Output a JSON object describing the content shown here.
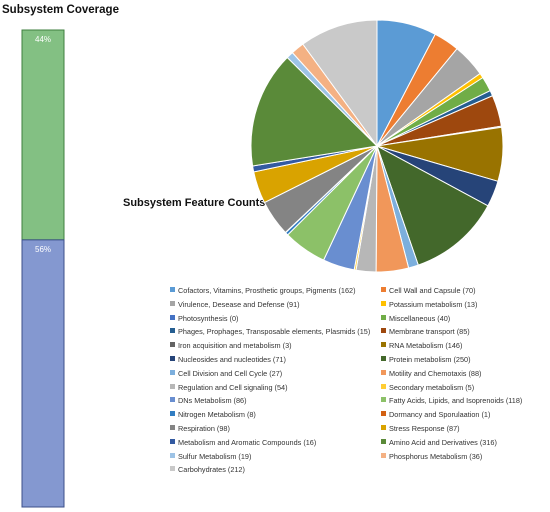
{
  "coverage": {
    "title": "Subsystem Coverage",
    "segments": [
      {
        "label": "44%",
        "value": 44,
        "color": "#83c083",
        "border": "#3f7f3f"
      },
      {
        "label": "56%",
        "value": 56,
        "color": "#8498d0",
        "border": "#3c4f8a"
      }
    ]
  },
  "chart_data": {
    "type": "pie",
    "title": "Subsystem Feature Counts",
    "legend_position": "bottom",
    "series": [
      {
        "name": "Cofactors, Vitamins, Prosthetic groups, Pigments (162)",
        "value": 162,
        "color": "#5b9bd5"
      },
      {
        "name": "Cell Wall and Capsule (70)",
        "value": 70,
        "color": "#ed7d31"
      },
      {
        "name": "Virulence, Desease and Defense (91)",
        "value": 91,
        "color": "#a5a5a5"
      },
      {
        "name": "Potassium metabolism (13)",
        "value": 13,
        "color": "#ffc000"
      },
      {
        "name": "Photosynthesis (0)",
        "value": 0,
        "color": "#4472c4"
      },
      {
        "name": "Miscellaneous (40)",
        "value": 40,
        "color": "#70ad47"
      },
      {
        "name": "Phages, Prophages, Transposable elements, Plasmids (15)",
        "value": 15,
        "color": "#255e91"
      },
      {
        "name": "Membrane transport (85)",
        "value": 85,
        "color": "#9e480e"
      },
      {
        "name": "Iron acquisition and metabolism (3)",
        "value": 3,
        "color": "#636363"
      },
      {
        "name": "RNA Metabolism (146)",
        "value": 146,
        "color": "#997300"
      },
      {
        "name": "Nucleosides and nucleotides (71)",
        "value": 71,
        "color": "#264478"
      },
      {
        "name": "Protein metabolism (250)",
        "value": 250,
        "color": "#43682b"
      },
      {
        "name": "Cell Division and Cell Cycle (27)",
        "value": 27,
        "color": "#7cafdd"
      },
      {
        "name": "Motility and Chemotaxis (88)",
        "value": 88,
        "color": "#f1975a"
      },
      {
        "name": "Regulation and Cell signaling (54)",
        "value": 54,
        "color": "#b7b7b7"
      },
      {
        "name": "Secondary metabolism (5)",
        "value": 5,
        "color": "#ffcd33"
      },
      {
        "name": "DNs Metabolism (86)",
        "value": 86,
        "color": "#698ed0"
      },
      {
        "name": "Fatty Acids, Lipids, and Isoprenoids (118)",
        "value": 118,
        "color": "#8cc168"
      },
      {
        "name": "Nitrogen Metabolism (8)",
        "value": 8,
        "color": "#327dc2"
      },
      {
        "name": "Dormancy and Sporulaation (1)",
        "value": 1,
        "color": "#d26012"
      },
      {
        "name": "Respiration (98)",
        "value": 98,
        "color": "#848484"
      },
      {
        "name": "Stress Response (87)",
        "value": 87,
        "color": "#d9a300"
      },
      {
        "name": "Metabolism and Aromatic Compounds (16)",
        "value": 16,
        "color": "#335aa1"
      },
      {
        "name": "Amino Acid and Derivatives (316)",
        "value": 316,
        "color": "#5a8a39"
      },
      {
        "name": "Sulfur Metabolism (19)",
        "value": 19,
        "color": "#9dc3e6"
      },
      {
        "name": "Phosphorus Metabolism (36)",
        "value": 36,
        "color": "#f4b183"
      },
      {
        "name": "Carbohydrates (212)",
        "value": 212,
        "color": "#c9c9c9"
      }
    ]
  }
}
